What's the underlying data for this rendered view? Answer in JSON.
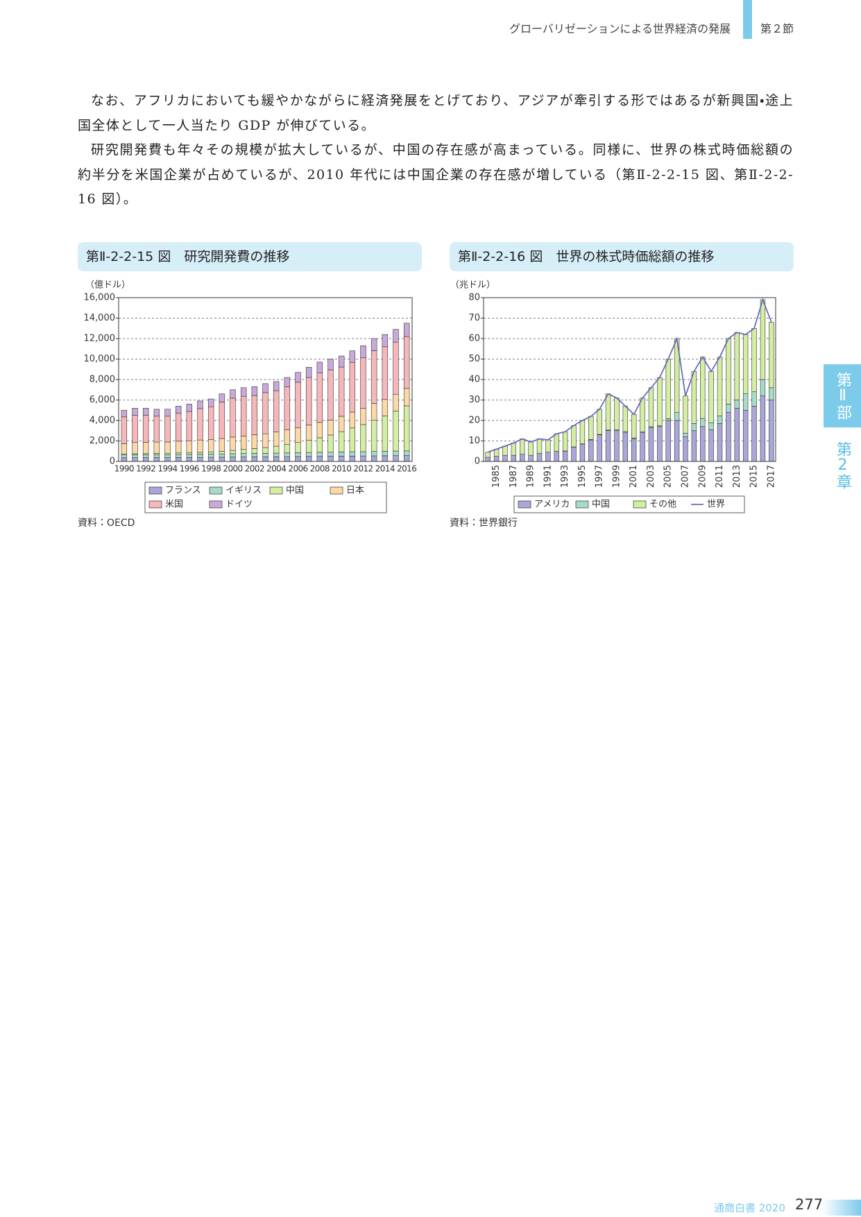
{
  "header": {
    "title": "グローバリゼーションによる世界経済の発展",
    "section": "第２節"
  },
  "side": {
    "part": "第Ⅱ部",
    "chapter": "第2章"
  },
  "paragraphs": [
    "なお、アフリカにおいても緩やかながらに経済発展をとげており、アジアが牽引する形ではあるが新興国・途上国全体として一人当たり GDP が伸びている。",
    "研究開発費も年々その規模が拡大しているが、中国の存在感が高まっている。同様に、世界の株式時価総額の約半分を米国企業が占めているが、2010 年代には中国企業の存在感が増している（第Ⅱ-2-2-15 図、第Ⅱ-2-2-16 図）。"
  ],
  "chart_data": [
    {
      "type": "bar",
      "stacked": true,
      "title": "第Ⅱ-2-2-15 図　研究開発費の推移",
      "y_label": "（億ドル）",
      "source": "資料：OECD",
      "categories": [
        "1990",
        null,
        "1992",
        null,
        "1994",
        null,
        "1996",
        null,
        "1998",
        null,
        "2000",
        null,
        "2002",
        null,
        "2004",
        null,
        "2006",
        null,
        "2008",
        null,
        "2010",
        null,
        "2012",
        null,
        "2014",
        null,
        "2016"
      ],
      "x_label_rotation": 0,
      "ylim": [
        0,
        16000
      ],
      "yticks": [
        0,
        {
          "value": 2000,
          "label": "2,000"
        },
        {
          "value": 4000,
          "label": "4,000"
        },
        {
          "value": 6000,
          "label": "6,000"
        },
        {
          "value": 8000,
          "label": "8,000"
        },
        {
          "value": 10000,
          "label": "10,000"
        },
        {
          "value": 12000,
          "label": "12,000"
        },
        {
          "value": 14000,
          "label": "14,000"
        },
        {
          "value": 16000,
          "label": "16,000"
        }
      ],
      "grid": true,
      "series": [
        {
          "name": "フランス",
          "color": "#a9a7d9",
          "values": [
            350,
            360,
            370,
            370,
            370,
            380,
            390,
            390,
            400,
            410,
            420,
            430,
            440,
            440,
            450,
            460,
            470,
            480,
            490,
            500,
            510,
            520,
            530,
            540,
            550,
            560,
            570
          ]
        },
        {
          "name": "イギリス",
          "color": "#a6dcc6",
          "values": [
            280,
            280,
            280,
            290,
            290,
            290,
            300,
            300,
            310,
            320,
            330,
            340,
            350,
            350,
            360,
            370,
            380,
            390,
            400,
            400,
            410,
            420,
            420,
            430,
            440,
            450,
            460
          ]
        },
        {
          "name": "中国",
          "color": "#d3eda2",
          "values": [
            100,
            110,
            120,
            130,
            140,
            160,
            180,
            200,
            220,
            260,
            330,
            400,
            470,
            560,
            680,
            820,
            1000,
            1190,
            1420,
            1680,
            1990,
            2330,
            2650,
            3050,
            3460,
            3900,
            4400
          ]
        },
        {
          "name": "日本",
          "color": "#fbd8a6",
          "values": [
            1000,
            1100,
            1100,
            1100,
            1100,
            1150,
            1150,
            1200,
            1200,
            1250,
            1300,
            1300,
            1350,
            1350,
            1400,
            1450,
            1450,
            1500,
            1500,
            1450,
            1500,
            1550,
            1600,
            1650,
            1600,
            1650,
            1700
          ]
        },
        {
          "name": "米国",
          "color": "#f6b7ba",
          "values": [
            2620,
            2650,
            2630,
            2530,
            2520,
            2720,
            2860,
            3070,
            3210,
            3560,
            3800,
            3890,
            3830,
            4020,
            4020,
            4180,
            4440,
            4640,
            4850,
            4920,
            4810,
            4860,
            4950,
            5150,
            5150,
            5090,
            5070
          ]
        },
        {
          "name": "ドイツ",
          "color": "#c9a9da",
          "values": [
            650,
            700,
            700,
            680,
            680,
            700,
            720,
            740,
            760,
            800,
            820,
            840,
            860,
            880,
            890,
            920,
            960,
            1000,
            1040,
            1050,
            1080,
            1120,
            1150,
            1180,
            1200,
            1250,
            1300
          ]
        }
      ]
    },
    {
      "type": "bar",
      "stacked": true,
      "title": "第Ⅱ-2-2-16 図　世界の株式時価総額の推移",
      "y_label": "（兆ドル）",
      "source": "資料：世界銀行",
      "categories": [
        null,
        "1985",
        null,
        "1987",
        null,
        "1989",
        null,
        "1991",
        null,
        "1993",
        null,
        "1995",
        null,
        "1997",
        null,
        "1999",
        null,
        "2001",
        null,
        "2003",
        null,
        "2005",
        null,
        "2007",
        null,
        "2009",
        null,
        "2011",
        null,
        "2013",
        null,
        "2015",
        null,
        "2017"
      ],
      "x_label_rotation": -90,
      "ylim": [
        0,
        80
      ],
      "yticks": [
        0,
        10,
        20,
        30,
        40,
        50,
        60,
        70,
        80
      ],
      "grid": true,
      "series": [
        {
          "name": "アメリカ",
          "color": "#a9a7d9",
          "values": [
            2,
            2.5,
            3,
            3,
            3.5,
            3,
            4,
            4.5,
            5,
            5,
            7,
            8.5,
            10.5,
            13,
            15,
            15,
            14,
            11,
            14,
            16.5,
            17,
            20,
            20,
            12,
            15,
            17,
            15.5,
            18.5,
            24,
            26,
            25,
            27,
            32,
            30
          ]
        },
        {
          "name": "中国",
          "color": "#a6dcc6",
          "values": [
            0,
            0,
            0,
            0,
            0,
            0,
            0,
            0,
            0,
            0.1,
            0.1,
            0.1,
            0.2,
            0.2,
            0.3,
            0.5,
            0.6,
            0.5,
            0.5,
            0.5,
            0.4,
            0.9,
            4,
            1.8,
            3.5,
            4,
            3.4,
            3.7,
            4,
            4,
            8,
            7,
            8,
            6
          ]
        },
        {
          "name": "その他",
          "color": "#d3eda2",
          "values": [
            2.5,
            3.5,
            4.5,
            6,
            7.5,
            6.5,
            7,
            6,
            8.5,
            9.4,
            10.4,
            11.4,
            11.3,
            12.3,
            17.7,
            15.5,
            12.4,
            11.5,
            16.5,
            19,
            23.6,
            29.1,
            36,
            18.2,
            25.5,
            30,
            25.1,
            28.8,
            32,
            33,
            29,
            31,
            39,
            32
          ]
        },
        {
          "name": "世界",
          "color": "#6b6bbd",
          "type": "line",
          "values": [
            4.5,
            6,
            7.5,
            9,
            11,
            9.5,
            11,
            10.5,
            13.5,
            14.5,
            17.5,
            20,
            22,
            25.5,
            33,
            31,
            27,
            23,
            31,
            36,
            41,
            50,
            60,
            32,
            44,
            51,
            44,
            51,
            60,
            63,
            62,
            65,
            79,
            68
          ]
        }
      ]
    }
  ],
  "footer": {
    "book": "通商白書 2020",
    "page": "277"
  }
}
